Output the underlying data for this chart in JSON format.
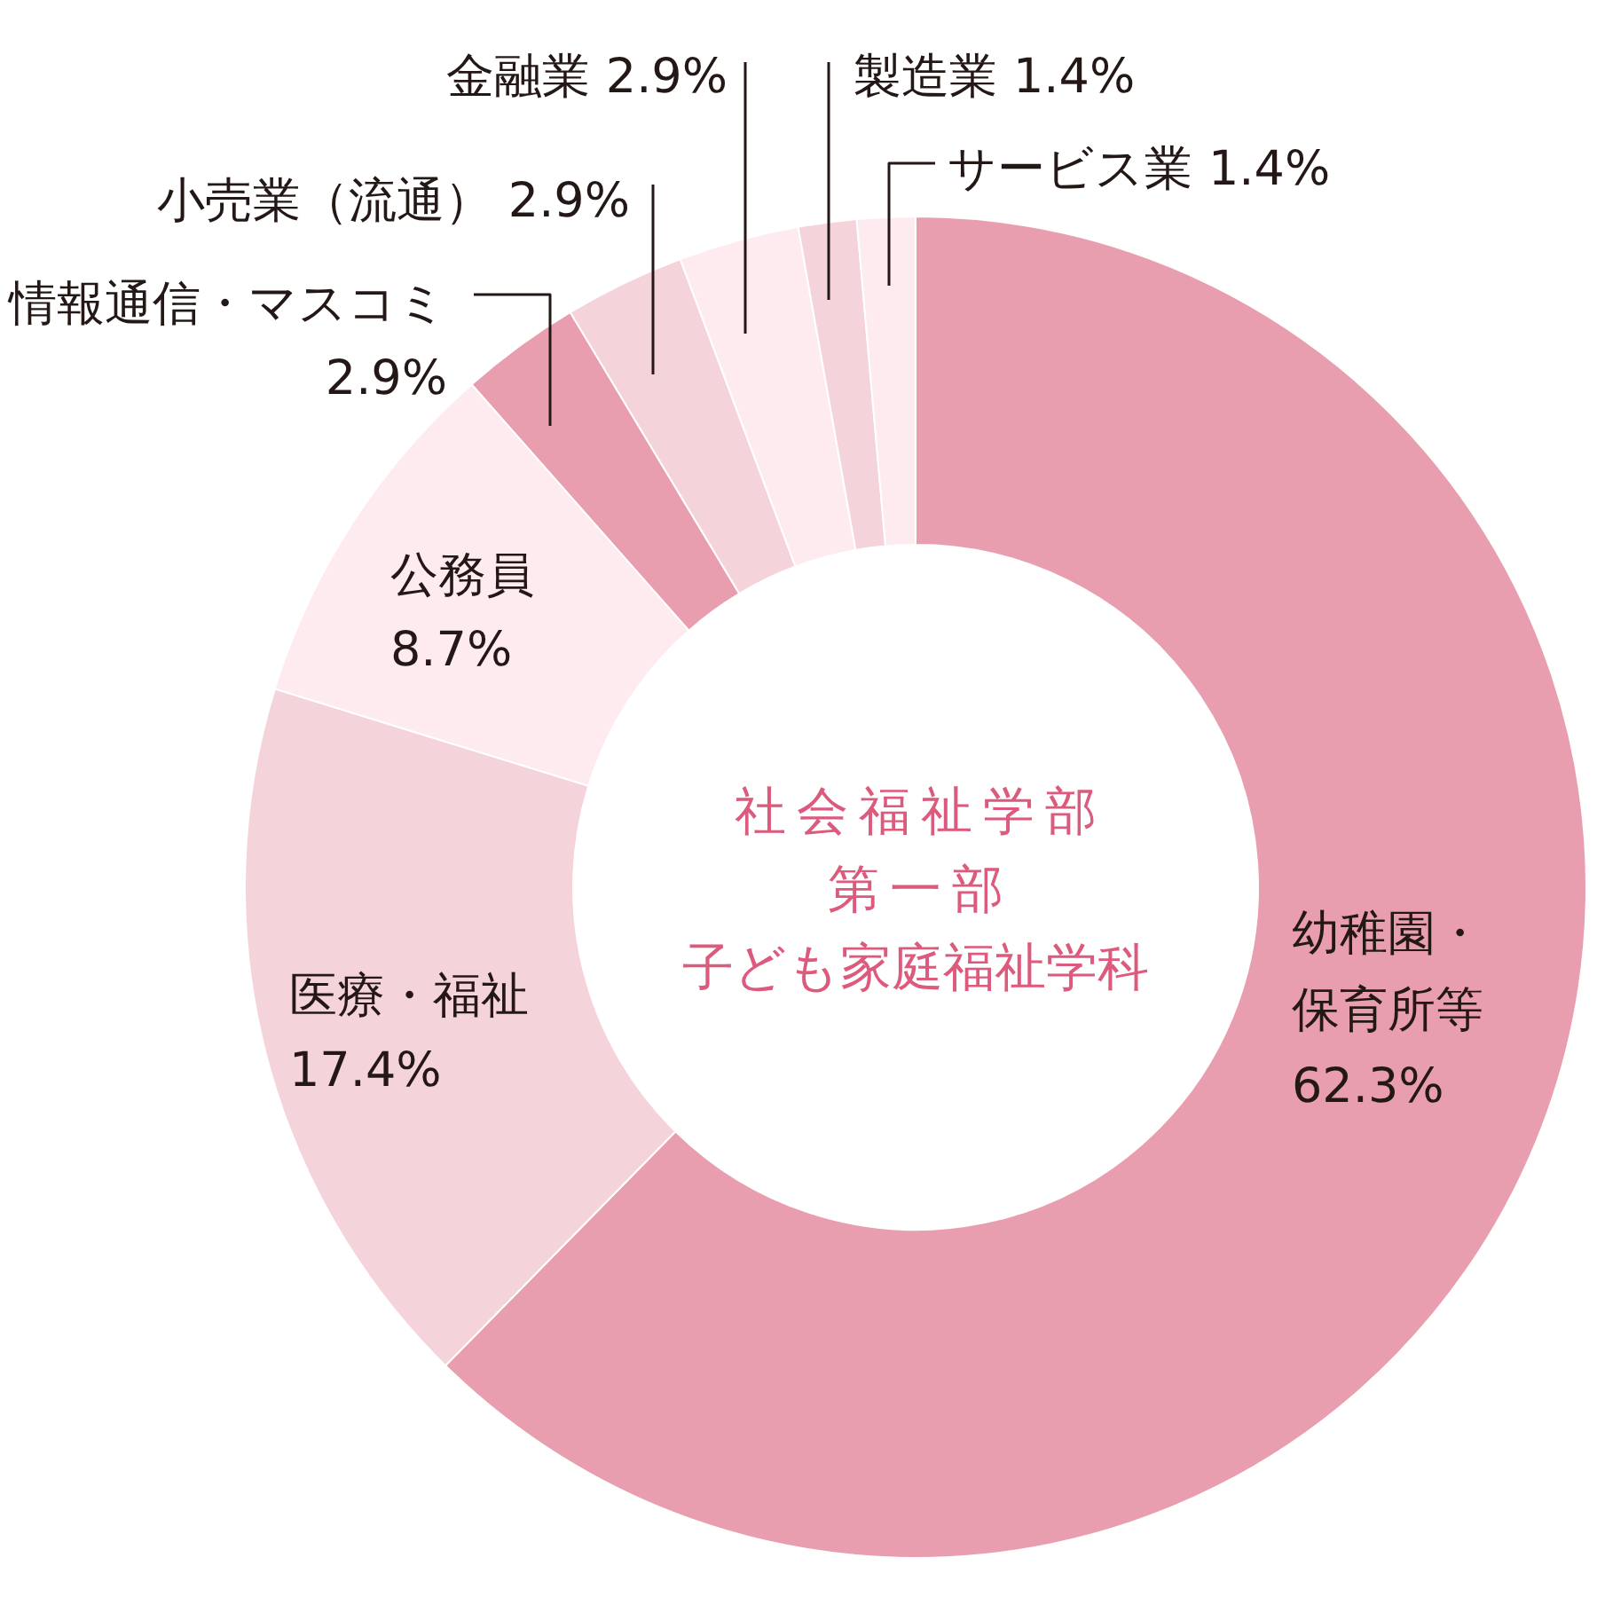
{
  "chart_data": {
    "type": "donut",
    "title": "社会福祉学部第一部子ども家庭福祉学科",
    "categories": [
      "幼稚園・保育所等",
      "医療・福祉",
      "公務員",
      "情報通信・マスコミ",
      "小売業（流通）",
      "金融業",
      "製造業",
      "サービス業"
    ],
    "values": [
      62.3,
      17.4,
      8.7,
      2.9,
      2.9,
      2.9,
      1.4,
      1.4
    ],
    "value_labels": [
      "62.3%",
      "17.4%",
      "8.7%",
      "2.9%",
      "2.9%",
      "2.9%",
      "1.4%",
      "1.4%"
    ],
    "colors": [
      "#e89eae",
      "#f5d3db",
      "#fdebef",
      "#e89eae",
      "#f5d3db",
      "#fdebef",
      "#f5d3db",
      "#fdebef"
    ]
  }
}
